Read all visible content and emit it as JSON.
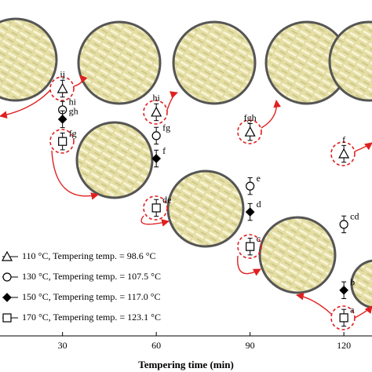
{
  "chart_data": {
    "type": "scatter",
    "xlabel": "Tempering time (min)",
    "x": [
      30,
      60,
      90,
      120
    ],
    "xlim": [
      10,
      129
    ],
    "xticks": [
      30,
      60,
      90,
      120
    ],
    "ylim": [
      0,
      100
    ],
    "series": [
      {
        "name": "110 °C, Tempering temp. = 98.6 °C",
        "marker": "triangle",
        "color": "#000000",
        "values": [
          73.6,
          66.6,
          60.7,
          54.2
        ],
        "errors": [
          2.5,
          2.5,
          2.5,
          2.5
        ],
        "letters": [
          "ij",
          "hi",
          "fgh",
          "f"
        ]
      },
      {
        "name": "130 °C, Tempering temp. = 107.5 °C",
        "marker": "circle",
        "color": "#000000",
        "values": [
          67.3,
          59.6,
          44.6,
          33.2
        ],
        "errors": [
          2.5,
          2.5,
          2.5,
          2.5
        ],
        "letters": [
          "hi",
          "fg",
          "e",
          "cd"
        ]
      },
      {
        "name": "150 °C, Tempering temp. = 117.0 °C",
        "marker": "diamond",
        "color": "#000000",
        "values": [
          64.5,
          52.8,
          36.9,
          13.6
        ],
        "errors": [
          2.5,
          2.5,
          2.5,
          2.5
        ],
        "letters": [
          "gh",
          "f",
          "d",
          "b"
        ]
      },
      {
        "name": "170 °C, Tempering temp. = 123.1 °C",
        "marker": "square",
        "color": "#000000",
        "values": [
          57.9,
          38.1,
          26.6,
          5.4
        ],
        "errors": [
          2.5,
          2.5,
          2.5,
          2.5
        ],
        "letters": [
          "fg",
          "de",
          "c",
          "a"
        ]
      }
    ]
  }
}
